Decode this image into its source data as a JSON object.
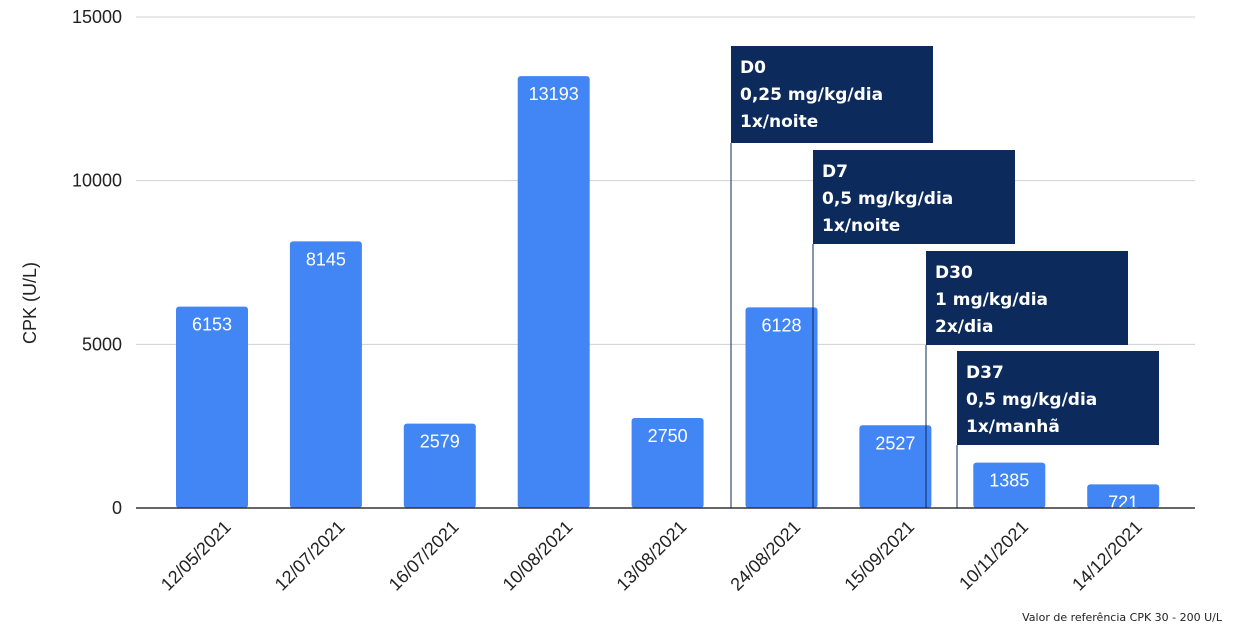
{
  "chart_data": {
    "type": "bar",
    "ylabel": "CPK (U/L)",
    "xlabel": "",
    "ylim": [
      0,
      15000
    ],
    "yticks": [
      0,
      5000,
      10000,
      15000
    ],
    "grid": true,
    "categories": [
      "12/05/2021",
      "12/07/2021",
      "16/07/2021",
      "10/08/2021",
      "13/08/2021",
      "24/08/2021",
      "15/09/2021",
      "10/11/2021",
      "14/12/2021"
    ],
    "values": [
      6153,
      8145,
      2579,
      13193,
      2750,
      6128,
      2527,
      1385,
      721
    ],
    "bar_color": "#4285f4",
    "annotation_color": "#0d2a5c",
    "annotations": [
      {
        "category": "24/08/2021",
        "lines": [
          "D0",
          "0,25 mg/kg/dia",
          "1x/noite"
        ]
      },
      {
        "category": "15/09/2021",
        "lines": [
          "D7",
          "0,5 mg/kg/dia",
          "1x/noite"
        ]
      },
      {
        "category": "10/11/2021",
        "lines": [
          "D30",
          "1 mg/kg/dia",
          "2x/dia"
        ]
      },
      {
        "category": "10/11/2021",
        "lines": [
          "D37",
          "0,5 mg/kg/dia",
          "1x/manhã"
        ]
      }
    ],
    "footnote": "Valor de referência CPK 30 - 200 U/L"
  }
}
